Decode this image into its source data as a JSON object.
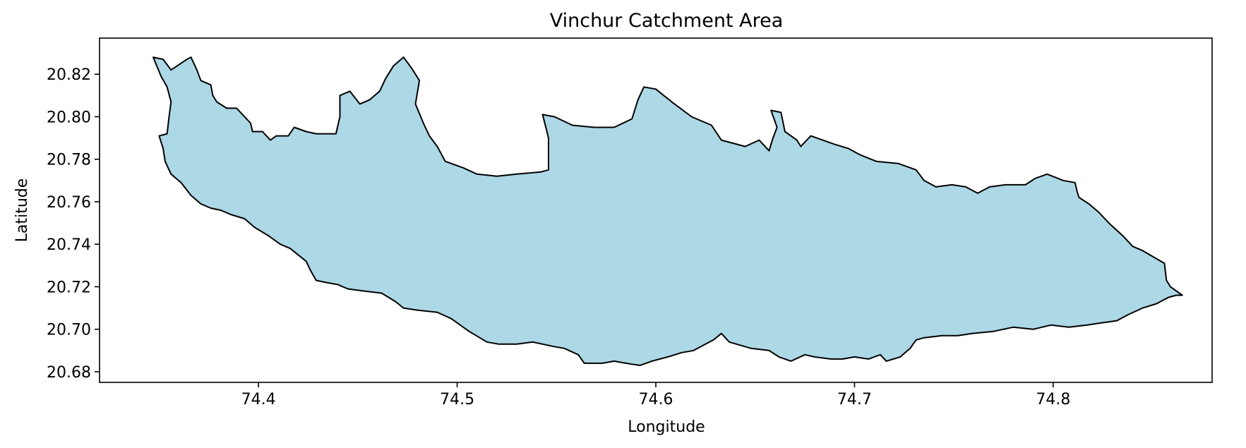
{
  "chart_data": {
    "type": "map",
    "title": "Vinchur Catchment Area",
    "xlabel": "Longitude",
    "ylabel": "Latitude",
    "xlim": [
      74.32,
      74.88
    ],
    "ylim": [
      20.675,
      20.837
    ],
    "x_ticks": [
      {
        "value": 74.4,
        "label": "74.4"
      },
      {
        "value": 74.5,
        "label": "74.5"
      },
      {
        "value": 74.6,
        "label": "74.6"
      },
      {
        "value": 74.7,
        "label": "74.7"
      },
      {
        "value": 74.8,
        "label": "74.8"
      }
    ],
    "y_ticks": [
      {
        "value": 20.68,
        "label": "20.68"
      },
      {
        "value": 20.7,
        "label": "20.70"
      },
      {
        "value": 20.72,
        "label": "20.72"
      },
      {
        "value": 20.74,
        "label": "20.74"
      },
      {
        "value": 20.76,
        "label": "20.76"
      },
      {
        "value": 20.78,
        "label": "20.78"
      },
      {
        "value": 20.8,
        "label": "20.80"
      },
      {
        "value": 20.82,
        "label": "20.82"
      }
    ],
    "grid": false,
    "colors": {
      "fill": "#add8e6",
      "outline": "#000000",
      "axes": "#000000"
    },
    "boundary": [
      [
        74.347,
        20.828
      ],
      [
        74.352,
        20.827
      ],
      [
        74.356,
        20.822
      ],
      [
        74.364,
        20.827
      ],
      [
        74.366,
        20.828
      ],
      [
        74.369,
        20.822
      ],
      [
        74.371,
        20.817
      ],
      [
        74.376,
        20.815
      ],
      [
        74.377,
        20.81
      ],
      [
        74.379,
        20.807
      ],
      [
        74.384,
        20.804
      ],
      [
        74.389,
        20.804
      ],
      [
        74.392,
        20.801
      ],
      [
        74.396,
        20.797
      ],
      [
        74.397,
        20.793
      ],
      [
        74.402,
        20.793
      ],
      [
        74.406,
        20.789
      ],
      [
        74.409,
        20.791
      ],
      [
        74.415,
        20.791
      ],
      [
        74.418,
        20.795
      ],
      [
        74.424,
        20.793
      ],
      [
        74.429,
        20.792
      ],
      [
        74.439,
        20.792
      ],
      [
        74.441,
        20.8
      ],
      [
        74.441,
        20.81
      ],
      [
        74.446,
        20.812
      ],
      [
        74.451,
        20.806
      ],
      [
        74.456,
        20.808
      ],
      [
        74.461,
        20.812
      ],
      [
        74.464,
        20.818
      ],
      [
        74.468,
        20.824
      ],
      [
        74.473,
        20.828
      ],
      [
        74.477,
        20.823
      ],
      [
        74.481,
        20.817
      ],
      [
        74.479,
        20.806
      ],
      [
        74.483,
        20.797
      ],
      [
        74.486,
        20.791
      ],
      [
        74.49,
        20.786
      ],
      [
        74.494,
        20.779
      ],
      [
        74.503,
        20.776
      ],
      [
        74.51,
        20.773
      ],
      [
        74.52,
        20.772
      ],
      [
        74.53,
        20.773
      ],
      [
        74.542,
        20.774
      ],
      [
        74.546,
        20.775
      ],
      [
        74.546,
        20.79
      ],
      [
        74.543,
        20.801
      ],
      [
        74.549,
        20.8
      ],
      [
        74.558,
        20.796
      ],
      [
        74.569,
        20.795
      ],
      [
        74.579,
        20.795
      ],
      [
        74.588,
        20.799
      ],
      [
        74.591,
        20.808
      ],
      [
        74.594,
        20.814
      ],
      [
        74.6,
        20.813
      ],
      [
        74.608,
        20.807
      ],
      [
        74.618,
        20.8
      ],
      [
        74.628,
        20.796
      ],
      [
        74.633,
        20.789
      ],
      [
        74.641,
        20.787
      ],
      [
        74.645,
        20.786
      ],
      [
        74.652,
        20.789
      ],
      [
        74.657,
        20.784
      ],
      [
        74.659,
        20.79
      ],
      [
        74.661,
        20.795
      ],
      [
        74.658,
        20.803
      ],
      [
        74.663,
        20.802
      ],
      [
        74.665,
        20.793
      ],
      [
        74.671,
        20.789
      ],
      [
        74.673,
        20.786
      ],
      [
        74.678,
        20.791
      ],
      [
        74.684,
        20.789
      ],
      [
        74.69,
        20.787
      ],
      [
        74.697,
        20.785
      ],
      [
        74.703,
        20.782
      ],
      [
        74.711,
        20.779
      ],
      [
        74.722,
        20.778
      ],
      [
        74.731,
        20.775
      ],
      [
        74.735,
        20.77
      ],
      [
        74.741,
        20.767
      ],
      [
        74.749,
        20.768
      ],
      [
        74.756,
        20.767
      ],
      [
        74.762,
        20.764
      ],
      [
        74.768,
        20.767
      ],
      [
        74.776,
        20.768
      ],
      [
        74.786,
        20.768
      ],
      [
        74.791,
        20.771
      ],
      [
        74.797,
        20.773
      ],
      [
        74.805,
        20.77
      ],
      [
        74.811,
        20.769
      ],
      [
        74.812,
        20.765
      ],
      [
        74.813,
        20.762
      ],
      [
        74.818,
        20.759
      ],
      [
        74.823,
        20.755
      ],
      [
        74.828,
        20.75
      ],
      [
        74.835,
        20.744
      ],
      [
        74.84,
        20.739
      ],
      [
        74.845,
        20.737
      ],
      [
        74.856,
        20.731
      ],
      [
        74.857,
        20.723
      ],
      [
        74.859,
        20.72
      ],
      [
        74.865,
        20.716
      ],
      [
        74.862,
        20.716
      ],
      [
        74.858,
        20.715
      ],
      [
        74.852,
        20.712
      ],
      [
        74.845,
        20.71
      ],
      [
        74.838,
        20.707
      ],
      [
        74.832,
        20.704
      ],
      [
        74.824,
        20.703
      ],
      [
        74.817,
        20.702
      ],
      [
        74.808,
        20.701
      ],
      [
        74.799,
        20.702
      ],
      [
        74.79,
        20.7
      ],
      [
        74.78,
        20.701
      ],
      [
        74.77,
        20.699
      ],
      [
        74.759,
        20.698
      ],
      [
        74.752,
        20.697
      ],
      [
        74.744,
        20.697
      ],
      [
        74.735,
        20.696
      ],
      [
        74.731,
        20.695
      ],
      [
        74.728,
        20.691
      ],
      [
        74.723,
        20.687
      ],
      [
        74.716,
        20.685
      ],
      [
        74.713,
        20.688
      ],
      [
        74.707,
        20.686
      ],
      [
        74.7,
        20.687
      ],
      [
        74.694,
        20.686
      ],
      [
        74.688,
        20.686
      ],
      [
        74.68,
        20.687
      ],
      [
        74.675,
        20.688
      ],
      [
        74.668,
        20.685
      ],
      [
        74.662,
        20.687
      ],
      [
        74.657,
        20.69
      ],
      [
        74.648,
        20.691
      ],
      [
        74.637,
        20.694
      ],
      [
        74.633,
        20.698
      ],
      [
        74.629,
        20.695
      ],
      [
        74.625,
        20.693
      ],
      [
        74.619,
        20.69
      ],
      [
        74.613,
        20.689
      ],
      [
        74.606,
        20.687
      ],
      [
        74.598,
        20.685
      ],
      [
        74.592,
        20.683
      ],
      [
        74.585,
        20.684
      ],
      [
        74.579,
        20.685
      ],
      [
        74.573,
        20.684
      ],
      [
        74.564,
        20.684
      ],
      [
        74.561,
        20.688
      ],
      [
        74.554,
        20.691
      ],
      [
        74.548,
        20.692
      ],
      [
        74.538,
        20.694
      ],
      [
        74.53,
        20.693
      ],
      [
        74.521,
        20.693
      ],
      [
        74.515,
        20.694
      ],
      [
        74.506,
        20.699
      ],
      [
        74.497,
        20.705
      ],
      [
        74.49,
        20.708
      ],
      [
        74.48,
        20.709
      ],
      [
        74.473,
        20.71
      ],
      [
        74.469,
        20.713
      ],
      [
        74.462,
        20.717
      ],
      [
        74.453,
        20.718
      ],
      [
        74.445,
        20.719
      ],
      [
        74.44,
        20.721
      ],
      [
        74.434,
        20.722
      ],
      [
        74.429,
        20.723
      ],
      [
        74.426,
        20.728
      ],
      [
        74.424,
        20.732
      ],
      [
        74.42,
        20.735
      ],
      [
        74.416,
        20.738
      ],
      [
        74.411,
        20.74
      ],
      [
        74.405,
        20.744
      ],
      [
        74.398,
        20.748
      ],
      [
        74.393,
        20.752
      ],
      [
        74.386,
        20.754
      ],
      [
        74.381,
        20.756
      ],
      [
        74.376,
        20.757
      ],
      [
        74.371,
        20.759
      ],
      [
        74.366,
        20.763
      ],
      [
        74.361,
        20.769
      ],
      [
        74.356,
        20.773
      ],
      [
        74.353,
        20.779
      ],
      [
        74.352,
        20.785
      ],
      [
        74.35,
        20.791
      ],
      [
        74.354,
        20.792
      ],
      [
        74.355,
        20.8
      ],
      [
        74.356,
        20.807
      ],
      [
        74.354,
        20.814
      ],
      [
        74.351,
        20.819
      ],
      [
        74.347,
        20.828
      ]
    ]
  }
}
